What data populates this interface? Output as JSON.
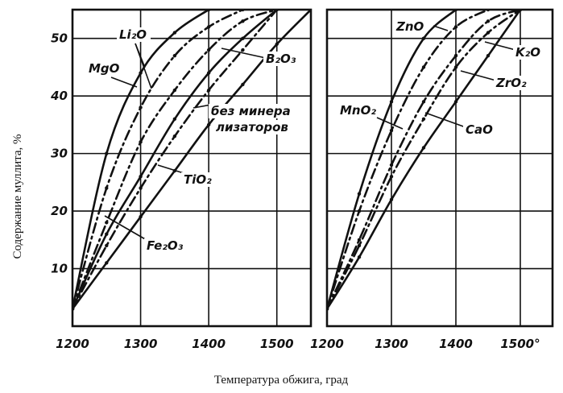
{
  "figure": {
    "ylabel": "Содержание муллита, %",
    "xlabel": "Температура обжига, град"
  },
  "chart_data": [
    {
      "type": "line",
      "panel": "left",
      "xlim": [
        1200,
        1550
      ],
      "ylim": [
        0,
        55
      ],
      "xticks": [
        "1200",
        "1300",
        "1400",
        "1500"
      ],
      "yticks": [
        "10",
        "20",
        "30",
        "40",
        "50"
      ],
      "grid": true,
      "series": [
        {
          "name": "Li2O",
          "style": "solid",
          "x": [
            1200,
            1250,
            1300,
            1350,
            1400
          ],
          "y": [
            3,
            30,
            44,
            51,
            55
          ]
        },
        {
          "name": "MgO",
          "style": "dashdot",
          "x": [
            1200,
            1250,
            1300,
            1350,
            1400,
            1450
          ],
          "y": [
            3,
            24,
            38,
            47,
            52,
            55
          ]
        },
        {
          "name": "B2O3",
          "style": "dashdot",
          "x": [
            1200,
            1250,
            1300,
            1350,
            1400,
            1450,
            1500
          ],
          "y": [
            3,
            18,
            32,
            41,
            48,
            53,
            55
          ]
        },
        {
          "name": "без минерализаторов",
          "style": "dashdot",
          "x": [
            1200,
            1250,
            1300,
            1350,
            1400,
            1450,
            1500
          ],
          "y": [
            3,
            14,
            24,
            33,
            41,
            48,
            55
          ]
        },
        {
          "name": "Fe2O3",
          "style": "solid",
          "x": [
            1200,
            1250,
            1300,
            1350,
            1400,
            1450,
            1500
          ],
          "y": [
            3,
            16,
            26,
            36,
            44,
            50,
            55
          ]
        },
        {
          "name": "TiO2",
          "style": "solid",
          "x": [
            1200,
            1250,
            1300,
            1350,
            1400,
            1450,
            1500,
            1550
          ],
          "y": [
            3,
            11,
            19,
            27,
            35,
            42,
            49,
            55
          ]
        }
      ],
      "annotations": [
        "Li₂O",
        "MgO",
        "B₂O₃",
        "без минера",
        "лизаторов",
        "TiO₂",
        "Fe₂O₃"
      ]
    },
    {
      "type": "line",
      "panel": "right",
      "xlim": [
        1200,
        1550
      ],
      "ylim": [
        0,
        55
      ],
      "xticks": [
        "1200",
        "1300",
        "1400",
        "1500°"
      ],
      "grid": true,
      "series": [
        {
          "name": "MnO2",
          "style": "solid",
          "x": [
            1200,
            1250,
            1300,
            1350,
            1400
          ],
          "y": [
            3,
            23,
            39,
            50,
            55
          ]
        },
        {
          "name": "ZnO",
          "style": "dashdot",
          "x": [
            1200,
            1250,
            1300,
            1350,
            1400,
            1450
          ],
          "y": [
            3,
            20,
            34,
            45,
            52,
            55
          ]
        },
        {
          "name": "ZrO2",
          "style": "dashdot",
          "x": [
            1200,
            1250,
            1300,
            1350,
            1400,
            1450,
            1500
          ],
          "y": [
            3,
            15,
            28,
            39,
            47,
            53,
            55
          ]
        },
        {
          "name": "CaO",
          "style": "dashdot",
          "x": [
            1200,
            1250,
            1300,
            1350,
            1400,
            1450,
            1500
          ],
          "y": [
            3,
            14,
            26,
            36,
            45,
            51,
            55
          ]
        },
        {
          "name": "K2O",
          "style": "solid",
          "x": [
            1200,
            1250,
            1300,
            1350,
            1400,
            1450,
            1500
          ],
          "y": [
            3,
            12,
            22,
            31,
            39,
            47,
            55
          ]
        }
      ],
      "annotations": [
        "ZnO",
        "K₂O",
        "ZrO₂",
        "MnO₂",
        "CaO"
      ]
    }
  ]
}
